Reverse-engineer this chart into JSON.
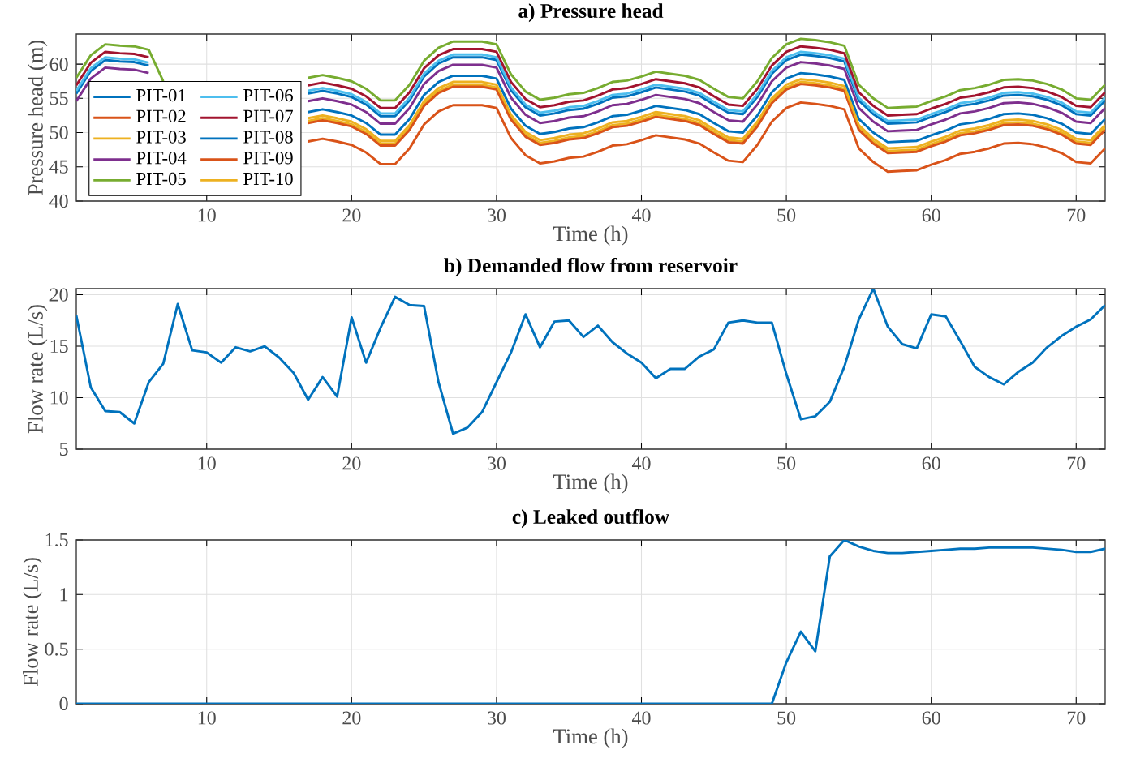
{
  "chart_data": [
    {
      "type": "line",
      "title": "a) Pressure head",
      "xlabel": "Time (h)",
      "ylabel": "Pressure head (m)",
      "xlim": [
        1,
        72
      ],
      "ylim": [
        40,
        64.4
      ],
      "xticks": [
        10,
        20,
        30,
        40,
        50,
        60,
        70
      ],
      "yticks": [
        40,
        45,
        50,
        55,
        60
      ],
      "grid": true,
      "legend": "bottom left",
      "x": [
        1,
        2,
        3,
        4,
        5,
        6,
        7,
        8,
        9,
        10,
        11,
        12,
        13,
        14,
        15,
        16,
        17,
        18,
        19,
        20,
        21,
        22,
        23,
        24,
        25,
        26,
        27,
        28,
        29,
        30,
        31,
        32,
        33,
        34,
        35,
        36,
        37,
        38,
        39,
        40,
        41,
        42,
        43,
        44,
        45,
        46,
        47,
        48,
        49,
        50,
        51,
        52,
        53,
        54,
        55,
        56,
        57,
        58,
        59,
        60,
        61,
        62,
        63,
        64,
        65,
        66,
        67,
        68,
        69,
        70,
        71,
        72
      ],
      "series": [
        {
          "name": "PIT-01",
          "color": "#0072bd",
          "values": [
            55.7,
            59.0,
            60.6,
            60.4,
            60.3,
            59.8,
            null,
            null,
            null,
            null,
            null,
            null,
            null,
            null,
            null,
            null,
            55.7,
            56.1,
            55.7,
            55.2,
            54.1,
            52.4,
            52.4,
            54.7,
            58.2,
            60.1,
            61.0,
            61.0,
            61.0,
            60.6,
            56.2,
            53.7,
            52.5,
            52.8,
            53.3,
            53.5,
            54.2,
            55.1,
            55.3,
            55.9,
            56.6,
            56.3,
            56.0,
            55.4,
            54.1,
            52.9,
            52.7,
            55.2,
            58.6,
            60.6,
            61.4,
            61.2,
            60.9,
            60.4,
            54.7,
            52.7,
            51.3,
            51.4,
            51.5,
            52.3,
            53.0,
            53.9,
            54.2,
            54.7,
            55.4,
            55.5,
            55.3,
            54.8,
            54.0,
            52.7,
            52.5,
            54.7
          ]
        },
        {
          "name": "PIT-02",
          "color": "#d95319",
          "values": [
            null,
            null,
            null,
            null,
            null,
            null,
            null,
            null,
            null,
            null,
            null,
            null,
            null,
            null,
            null,
            null,
            48.7,
            49.1,
            48.7,
            48.2,
            47.1,
            45.4,
            45.4,
            47.7,
            51.2,
            53.1,
            54.0,
            54.0,
            54.0,
            53.6,
            49.2,
            46.7,
            45.5,
            45.8,
            46.3,
            46.5,
            47.2,
            48.1,
            48.3,
            48.9,
            49.6,
            49.3,
            49.0,
            48.4,
            47.1,
            45.9,
            45.7,
            48.2,
            51.6,
            53.6,
            54.4,
            54.2,
            53.9,
            53.4,
            47.7,
            45.7,
            44.3,
            44.4,
            44.5,
            45.3,
            46.0,
            46.9,
            47.2,
            47.7,
            48.4,
            48.5,
            48.3,
            47.8,
            47.0,
            45.7,
            45.5,
            47.7
          ]
        },
        {
          "name": "PIT-03",
          "color": "#edb120",
          "values": [
            null,
            null,
            null,
            null,
            null,
            null,
            null,
            null,
            null,
            null,
            null,
            null,
            null,
            null,
            null,
            null,
            51.7,
            52.1,
            51.7,
            51.2,
            50.1,
            48.4,
            48.4,
            50.7,
            54.2,
            56.1,
            57.0,
            57.0,
            57.0,
            56.6,
            52.2,
            49.7,
            48.5,
            48.8,
            49.3,
            49.5,
            50.2,
            51.1,
            51.3,
            51.9,
            52.6,
            52.3,
            52.0,
            51.4,
            50.1,
            48.9,
            48.7,
            51.2,
            54.6,
            56.6,
            57.4,
            57.2,
            56.9,
            56.4,
            50.7,
            48.7,
            47.3,
            47.4,
            47.5,
            48.3,
            49.0,
            49.9,
            50.2,
            50.7,
            51.4,
            51.5,
            51.3,
            50.8,
            50.0,
            48.7,
            48.5,
            50.7
          ]
        },
        {
          "name": "PIT-04",
          "color": "#7e2f8e",
          "values": [
            54.6,
            57.9,
            59.5,
            59.3,
            59.2,
            58.7,
            null,
            null,
            null,
            null,
            null,
            null,
            null,
            null,
            null,
            null,
            54.6,
            55.0,
            54.6,
            54.1,
            53.0,
            51.3,
            51.3,
            53.6,
            57.1,
            59.0,
            59.9,
            59.9,
            59.9,
            59.5,
            55.1,
            52.6,
            51.4,
            51.7,
            52.2,
            52.4,
            53.1,
            54.0,
            54.2,
            54.8,
            55.5,
            55.2,
            54.9,
            54.3,
            53.0,
            51.8,
            51.6,
            54.1,
            57.5,
            59.5,
            60.3,
            60.1,
            59.8,
            59.3,
            53.6,
            51.6,
            50.2,
            50.3,
            50.4,
            51.2,
            51.9,
            52.8,
            53.1,
            53.6,
            54.3,
            54.4,
            54.2,
            53.7,
            52.9,
            51.6,
            51.4,
            53.6
          ]
        },
        {
          "name": "PIT-05",
          "color": "#77ac30",
          "values": [
            58.0,
            61.3,
            62.9,
            62.7,
            62.6,
            62.1,
            57.5,
            null,
            null,
            null,
            null,
            null,
            null,
            null,
            null,
            null,
            58.0,
            58.4,
            58.0,
            57.5,
            56.4,
            54.7,
            54.7,
            57.0,
            60.5,
            62.4,
            63.3,
            63.3,
            63.3,
            62.9,
            58.5,
            56.0,
            54.8,
            55.1,
            55.6,
            55.8,
            56.5,
            57.4,
            57.6,
            58.2,
            58.9,
            58.6,
            58.3,
            57.7,
            56.4,
            55.2,
            55.0,
            57.5,
            60.9,
            62.9,
            63.7,
            63.5,
            63.2,
            62.7,
            57.0,
            55.0,
            53.6,
            53.7,
            53.8,
            54.6,
            55.3,
            56.2,
            56.5,
            57.0,
            57.7,
            57.8,
            57.6,
            57.1,
            56.3,
            55.0,
            54.8,
            57.0
          ]
        },
        {
          "name": "PIT-06",
          "color": "#4dbeee",
          "values": [
            56.1,
            59.4,
            61.0,
            60.8,
            60.7,
            60.2,
            null,
            null,
            null,
            null,
            null,
            null,
            null,
            null,
            null,
            null,
            56.1,
            56.5,
            56.1,
            55.6,
            54.5,
            52.8,
            52.8,
            55.1,
            58.6,
            60.5,
            61.4,
            61.4,
            61.4,
            61.0,
            56.6,
            54.1,
            52.9,
            53.2,
            53.7,
            53.9,
            54.6,
            55.5,
            55.7,
            56.3,
            57.0,
            56.7,
            56.4,
            55.8,
            54.5,
            53.3,
            53.1,
            55.6,
            59.0,
            61.0,
            61.8,
            61.6,
            61.3,
            60.8,
            55.1,
            53.1,
            51.7,
            51.8,
            51.9,
            52.7,
            53.4,
            54.3,
            54.6,
            55.1,
            55.8,
            55.9,
            55.7,
            55.2,
            54.4,
            53.1,
            52.9,
            55.1
          ]
        },
        {
          "name": "PIT-07",
          "color": "#a2142f",
          "values": [
            56.9,
            60.2,
            61.8,
            61.6,
            61.5,
            61.0,
            null,
            null,
            null,
            null,
            null,
            null,
            null,
            null,
            null,
            null,
            56.9,
            57.3,
            56.9,
            56.4,
            55.3,
            53.6,
            53.6,
            55.9,
            59.4,
            61.3,
            62.2,
            62.2,
            62.2,
            61.8,
            57.4,
            54.9,
            53.7,
            54.0,
            54.5,
            54.7,
            55.4,
            56.3,
            56.5,
            57.1,
            57.8,
            57.5,
            57.2,
            56.6,
            55.3,
            54.1,
            53.9,
            56.4,
            59.8,
            61.8,
            62.6,
            62.4,
            62.1,
            61.6,
            55.9,
            53.9,
            52.5,
            52.6,
            52.7,
            53.5,
            54.2,
            55.1,
            55.4,
            55.9,
            56.6,
            56.7,
            56.5,
            56.0,
            55.2,
            53.9,
            53.7,
            55.9
          ]
        },
        {
          "name": "PIT-08",
          "color": "#0072bd",
          "values": [
            null,
            null,
            null,
            null,
            null,
            null,
            null,
            null,
            null,
            null,
            null,
            null,
            null,
            null,
            null,
            null,
            53.0,
            53.4,
            53.0,
            52.5,
            51.4,
            49.7,
            49.7,
            52.0,
            55.5,
            57.4,
            58.3,
            58.3,
            58.3,
            57.9,
            53.5,
            51.0,
            49.8,
            50.1,
            50.6,
            50.8,
            51.5,
            52.4,
            52.6,
            53.2,
            53.9,
            53.6,
            53.3,
            52.7,
            51.4,
            50.2,
            50.0,
            52.5,
            55.9,
            57.9,
            58.7,
            58.5,
            58.2,
            57.7,
            52.0,
            50.0,
            48.6,
            48.7,
            48.8,
            49.6,
            50.3,
            51.2,
            51.5,
            52.0,
            52.7,
            52.8,
            52.6,
            52.1,
            51.3,
            50.0,
            49.8,
            52.0
          ]
        },
        {
          "name": "PIT-09",
          "color": "#d95319",
          "values": [
            null,
            null,
            null,
            null,
            null,
            null,
            null,
            null,
            null,
            null,
            null,
            null,
            null,
            null,
            null,
            null,
            51.4,
            51.8,
            51.4,
            50.9,
            49.8,
            48.1,
            48.1,
            50.4,
            53.9,
            55.8,
            56.7,
            56.7,
            56.7,
            56.3,
            51.9,
            49.4,
            48.2,
            48.5,
            49.0,
            49.2,
            49.9,
            50.8,
            51.0,
            51.6,
            52.3,
            52.0,
            51.7,
            51.1,
            49.8,
            48.6,
            48.4,
            50.9,
            54.3,
            56.3,
            57.1,
            56.9,
            56.6,
            56.1,
            50.4,
            48.4,
            47.0,
            47.1,
            47.2,
            48.0,
            48.7,
            49.6,
            49.9,
            50.4,
            51.1,
            51.2,
            51.0,
            50.5,
            49.7,
            48.4,
            48.2,
            50.4
          ]
        },
        {
          "name": "PIT-10",
          "color": "#edb120",
          "values": [
            null,
            null,
            null,
            null,
            null,
            null,
            null,
            null,
            null,
            null,
            null,
            null,
            null,
            null,
            null,
            null,
            52.1,
            52.5,
            52.1,
            51.6,
            50.5,
            48.8,
            48.8,
            51.1,
            54.6,
            56.5,
            57.4,
            57.4,
            57.4,
            57.0,
            52.6,
            50.1,
            48.9,
            49.2,
            49.7,
            49.9,
            50.6,
            51.5,
            51.7,
            52.3,
            53.0,
            52.7,
            52.4,
            51.8,
            50.5,
            49.3,
            49.1,
            51.6,
            55.0,
            57.0,
            57.8,
            57.6,
            57.3,
            56.8,
            51.1,
            49.1,
            47.7,
            47.8,
            47.9,
            48.7,
            49.4,
            50.3,
            50.6,
            51.1,
            51.8,
            51.9,
            51.7,
            51.2,
            50.4,
            49.1,
            48.9,
            51.1
          ]
        }
      ]
    },
    {
      "type": "line",
      "title": "b) Demanded flow from reservoir",
      "xlabel": "Time (h)",
      "ylabel": "Flow rate (L/s)",
      "xlim": [
        1,
        72
      ],
      "ylim": [
        5,
        20.6
      ],
      "xticks": [
        10,
        20,
        30,
        40,
        50,
        60,
        70
      ],
      "yticks": [
        5,
        10,
        15,
        20
      ],
      "grid": true,
      "x": [
        1,
        2,
        3,
        4,
        5,
        6,
        7,
        8,
        9,
        10,
        11,
        12,
        13,
        14,
        15,
        16,
        17,
        18,
        19,
        20,
        21,
        22,
        23,
        24,
        25,
        26,
        27,
        28,
        29,
        30,
        31,
        32,
        33,
        34,
        35,
        36,
        37,
        38,
        39,
        40,
        41,
        42,
        43,
        44,
        45,
        46,
        47,
        48,
        49,
        50,
        51,
        52,
        53,
        54,
        55,
        56,
        57,
        58,
        59,
        60,
        61,
        62,
        63,
        64,
        65,
        66,
        67,
        68,
        69,
        70,
        71,
        72
      ],
      "series": [
        {
          "color": "#0072bd",
          "values": [
            18.0,
            11.0,
            8.7,
            8.6,
            7.5,
            11.5,
            13.3,
            19.1,
            14.6,
            14.4,
            13.4,
            14.9,
            14.5,
            15.0,
            13.9,
            12.4,
            9.8,
            12.0,
            10.1,
            17.8,
            13.4,
            16.8,
            19.8,
            19.0,
            18.9,
            11.5,
            6.5,
            7.1,
            8.6,
            11.5,
            14.4,
            18.1,
            14.9,
            17.4,
            17.5,
            15.9,
            17.0,
            15.4,
            14.3,
            13.4,
            11.9,
            12.8,
            12.8,
            14.0,
            14.7,
            17.3,
            17.5,
            17.3,
            17.3,
            12.3,
            7.9,
            8.2,
            9.6,
            13.0,
            17.6,
            20.6,
            16.9,
            15.2,
            14.8,
            18.1,
            17.9,
            15.5,
            13.0,
            12.0,
            11.3,
            12.5,
            13.4,
            14.9,
            16.0,
            16.9,
            17.6,
            19.0
          ]
        }
      ]
    },
    {
      "type": "line",
      "title": "c) Leaked outflow",
      "xlabel": "Time (h)",
      "ylabel": "Flow rate (L/s)",
      "xlim": [
        1,
        72
      ],
      "ylim": [
        0,
        1.5
      ],
      "xticks": [
        10,
        20,
        30,
        40,
        50,
        60,
        70
      ],
      "yticks": [
        0,
        0.5,
        1,
        1.5
      ],
      "grid": true,
      "x": [
        1,
        2,
        3,
        4,
        5,
        6,
        7,
        8,
        9,
        10,
        11,
        12,
        13,
        14,
        15,
        16,
        17,
        18,
        19,
        20,
        21,
        22,
        23,
        24,
        25,
        26,
        27,
        28,
        29,
        30,
        31,
        32,
        33,
        34,
        35,
        36,
        37,
        38,
        39,
        40,
        41,
        42,
        43,
        44,
        45,
        46,
        47,
        48,
        49,
        50,
        51,
        52,
        53,
        54,
        55,
        56,
        57,
        58,
        59,
        60,
        61,
        62,
        63,
        64,
        65,
        66,
        67,
        68,
        69,
        70,
        71,
        72
      ],
      "series": [
        {
          "color": "#0072bd",
          "values": [
            0,
            0,
            0,
            0,
            0,
            0,
            0,
            0,
            0,
            0,
            0,
            0,
            0,
            0,
            0,
            0,
            0,
            0,
            0,
            0,
            0,
            0,
            0,
            0,
            0,
            0,
            0,
            0,
            0,
            0,
            0,
            0,
            0,
            0,
            0,
            0,
            0,
            0,
            0,
            0,
            0,
            0,
            0,
            0,
            0,
            0,
            0,
            0,
            0,
            0.38,
            0.66,
            0.48,
            1.35,
            1.5,
            1.44,
            1.4,
            1.38,
            1.38,
            1.39,
            1.4,
            1.41,
            1.42,
            1.42,
            1.43,
            1.43,
            1.43,
            1.43,
            1.42,
            1.41,
            1.39,
            1.39,
            1.42
          ]
        }
      ]
    }
  ]
}
